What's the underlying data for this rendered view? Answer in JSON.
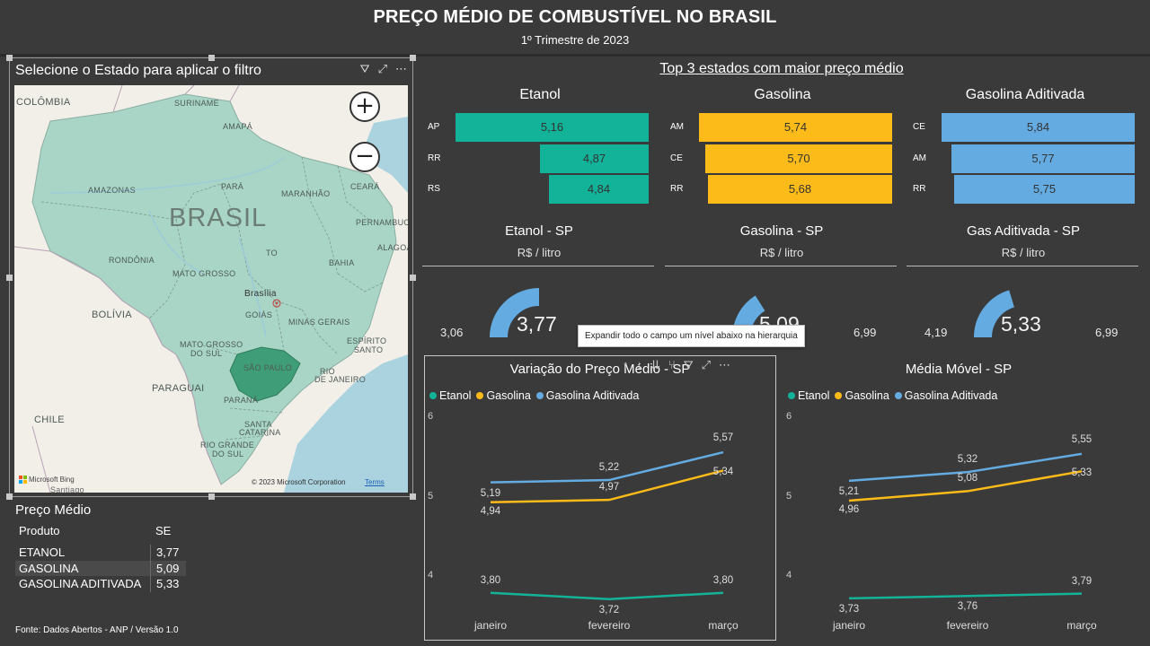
{
  "header": {
    "title": "PREÇO MÉDIO DE COMBUSTÍVEL NO BRASIL",
    "subtitle": "1º Trimestre de 2023"
  },
  "map": {
    "title": "Selecione o Estado para aplicar o filtro",
    "zoom_in": "+",
    "zoom_out": "−",
    "labels": {
      "colombia": "COLÔMBIA",
      "suriname": "SURINAME",
      "amapa": "AMAPÁ",
      "amazonas": "AMAZONAS",
      "para": "PARÁ",
      "maranhao": "MARANHÃO",
      "ceara": "CEARÁ",
      "brasil": "BRASIL",
      "pernambuco": "PERNAMBUCO",
      "alagoas": "ALAGOAS",
      "to": "TO",
      "rondonia": "RONDÔNIA",
      "bahia": "BAHIA",
      "mato_grosso": "MATO GROSSO",
      "bolivia": "BOLÍVIA",
      "brasilia": "Brasília",
      "goias": "GOIÁS",
      "minas": "MINAS GERAIS",
      "espirito": "ESPÍRITO",
      "santo": "SANTO",
      "ms1": "MATO GROSSO",
      "ms2": "DO SUL",
      "sao_paulo": "SÃO PAULO",
      "rio1": "RIO",
      "rio2": "DE JANEIRO",
      "paraguai": "PARAGUAI",
      "parana": "PARANÁ",
      "chile": "CHILE",
      "sc1": "SANTA",
      "sc2": "CATARINA",
      "rs1": "RIO GRANDE",
      "rs2": "DO SUL",
      "santiago": "Santiago"
    },
    "bing": "Microsoft Bing",
    "copyright": "© 2023 Microsoft Corporation",
    "terms": "Terms"
  },
  "table": {
    "title": "Preço Médio",
    "col_produto": "Produto",
    "col_se": "SE",
    "rows": [
      {
        "produto": "ETANOL",
        "valor": "3,77"
      },
      {
        "produto": "GASOLINA",
        "valor": "5,09"
      },
      {
        "produto": "GASOLINA ADITIVADA",
        "valor": "5,33"
      }
    ]
  },
  "source": "Fonte: Dados Abertos - ANP / Versão 1.0",
  "top3": {
    "title": "Top 3 estados com maior preço médio",
    "categories": [
      {
        "name": "Etanol",
        "color": "#13b399",
        "items": [
          {
            "state": "AP",
            "value": 5.16,
            "label": "5,16"
          },
          {
            "state": "RR",
            "value": 4.87,
            "label": "4,87"
          },
          {
            "state": "RS",
            "value": 4.84,
            "label": "4,84"
          }
        ]
      },
      {
        "name": "Gasolina",
        "color": "#fcbb19",
        "items": [
          {
            "state": "AM",
            "value": 5.74,
            "label": "5,74"
          },
          {
            "state": "CE",
            "value": 5.7,
            "label": "5,70"
          },
          {
            "state": "RR",
            "value": 5.68,
            "label": "5,68"
          }
        ]
      },
      {
        "name": "Gasolina Aditivada",
        "color": "#64abe2",
        "items": [
          {
            "state": "CE",
            "value": 5.84,
            "label": "5,84"
          },
          {
            "state": "AM",
            "value": 5.77,
            "label": "5,77"
          },
          {
            "state": "RR",
            "value": 5.75,
            "label": "5,75"
          }
        ]
      }
    ]
  },
  "gauges": [
    {
      "title": "Etanol - SP",
      "unit": "R$ / litro",
      "min": 3.06,
      "max": 4.48,
      "value": 3.77,
      "min_label": "3,06",
      "max_label": "",
      "value_label": "3,77",
      "color": "#64abe2"
    },
    {
      "title": "Gasolina - SP",
      "unit": "R$ / litro",
      "min": 4.19,
      "max": 6.99,
      "value": 5.09,
      "min_label": "",
      "max_label": "6,99",
      "value_label": "5,09",
      "color": "#64abe2"
    },
    {
      "title": "Gas Aditivada - SP",
      "unit": "R$ / litro",
      "min": 4.19,
      "max": 6.99,
      "value": 5.33,
      "min_label": "4,19",
      "max_label": "6,99",
      "value_label": "5,33",
      "color": "#64abe2"
    }
  ],
  "tooltip": "Expandir todo o campo um nível abaixo na hierarquia",
  "chart_data": [
    {
      "type": "line",
      "title": "Variação do Preço Médio - SP",
      "categories": [
        "janeiro",
        "fevereiro",
        "março"
      ],
      "ylim": [
        4,
        6
      ],
      "yticks": [
        "4",
        "5",
        "6"
      ],
      "legend_position": "top-left",
      "series": [
        {
          "name": "Etanol",
          "color": "#13b399",
          "values": [
            3.8,
            3.72,
            3.8
          ],
          "labels": [
            "3,80",
            "3,72",
            "3,80"
          ]
        },
        {
          "name": "Gasolina",
          "color": "#fcbb19",
          "values": [
            4.94,
            4.97,
            5.34
          ],
          "labels": [
            "4,94",
            "4,97",
            "5,34"
          ]
        },
        {
          "name": "Gasolina Aditivada",
          "color": "#64abe2",
          "values": [
            5.19,
            5.22,
            5.57
          ],
          "labels": [
            "5,19",
            "5,22",
            "5,57"
          ]
        }
      ]
    },
    {
      "type": "line",
      "title": "Média Móvel - SP",
      "categories": [
        "janeiro",
        "fevereiro",
        "março"
      ],
      "ylim": [
        4,
        6
      ],
      "yticks": [
        "4",
        "5",
        "6"
      ],
      "legend_position": "top-left",
      "series": [
        {
          "name": "Etanol",
          "color": "#13b399",
          "values": [
            3.73,
            3.76,
            3.79
          ],
          "labels": [
            "3,73",
            "3,76",
            "3,79"
          ]
        },
        {
          "name": "Gasolina",
          "color": "#fcbb19",
          "values": [
            4.96,
            5.08,
            5.33
          ],
          "labels": [
            "4,96",
            "5,08",
            "5,33"
          ]
        },
        {
          "name": "Gasolina Aditivada",
          "color": "#64abe2",
          "values": [
            5.21,
            5.32,
            5.55
          ],
          "labels": [
            "5,21",
            "5,32",
            "5,55"
          ]
        }
      ]
    }
  ]
}
